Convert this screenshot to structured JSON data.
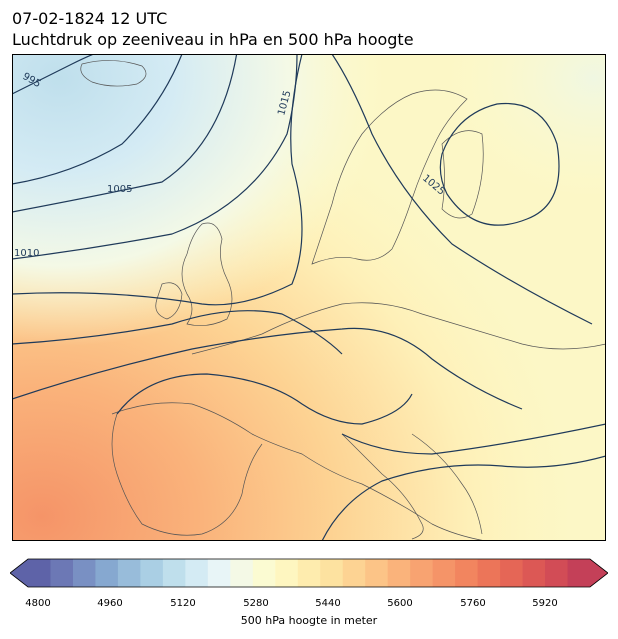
{
  "header": {
    "date": "07-02-1824 12 UTC",
    "subtitle": "Luchtdruk op zeeniveau in hPa en 500 hPa hoogte"
  },
  "map": {
    "region": "Europe",
    "isobar_labels": [
      "995",
      "1005",
      "1010",
      "1015",
      "1025"
    ],
    "colors": {
      "land_border": "#555555",
      "isobar": "#1f3a5a",
      "frame": "#000000"
    }
  },
  "colorbar": {
    "label": "500 hPa hoogte in meter",
    "ticks": [
      "4800",
      "4960",
      "5120",
      "5280",
      "5440",
      "5600",
      "5760",
      "5920"
    ],
    "range": [
      4800,
      6000
    ],
    "step": 40,
    "extend": "both",
    "colors": [
      "#5e63a8",
      "#6c78b5",
      "#7990c3",
      "#86a8d0",
      "#98bcda",
      "#aacfe4",
      "#bfdfec",
      "#d4ebf4",
      "#e8f5f7",
      "#f4f9e6",
      "#fbfbd2",
      "#fef6c0",
      "#feecae",
      "#fde2a0",
      "#fdd393",
      "#fcc487",
      "#fab37b",
      "#f8a371",
      "#f59468",
      "#f2855f",
      "#ec7559",
      "#e56656",
      "#dc5855",
      "#d24c56",
      "#c44058"
    ]
  }
}
